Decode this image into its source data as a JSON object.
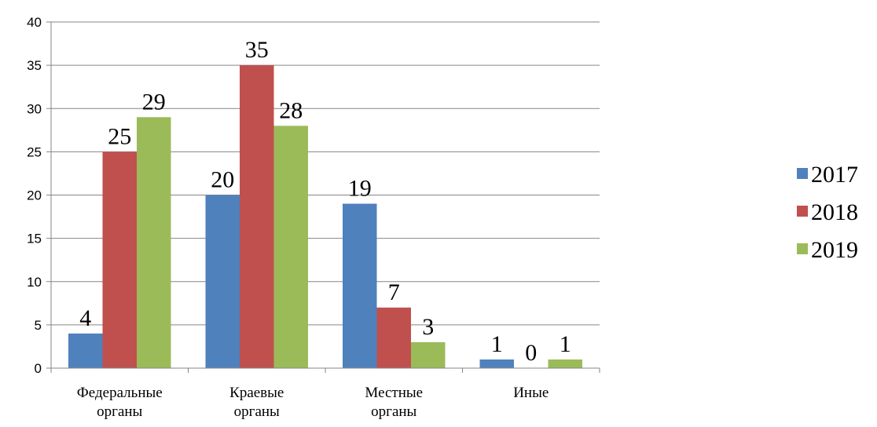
{
  "chart_data": {
    "type": "bar",
    "categories": [
      [
        "Федеральные",
        "органы"
      ],
      [
        "Краевые",
        "органы"
      ],
      [
        "Местные",
        "органы"
      ],
      [
        "Иные"
      ]
    ],
    "series": [
      {
        "name": "2017",
        "color": "#4F81BD",
        "values": [
          4,
          20,
          19,
          1
        ]
      },
      {
        "name": "2018",
        "color": "#C0504D",
        "values": [
          25,
          35,
          7,
          0
        ]
      },
      {
        "name": "2019",
        "color": "#9BBB59",
        "values": [
          29,
          28,
          3,
          1
        ]
      }
    ],
    "ylim": [
      0,
      40
    ],
    "yticks": [
      0,
      5,
      10,
      15,
      20,
      25,
      30,
      35,
      40
    ],
    "grid": true,
    "legend": "right",
    "data_labels": true
  }
}
